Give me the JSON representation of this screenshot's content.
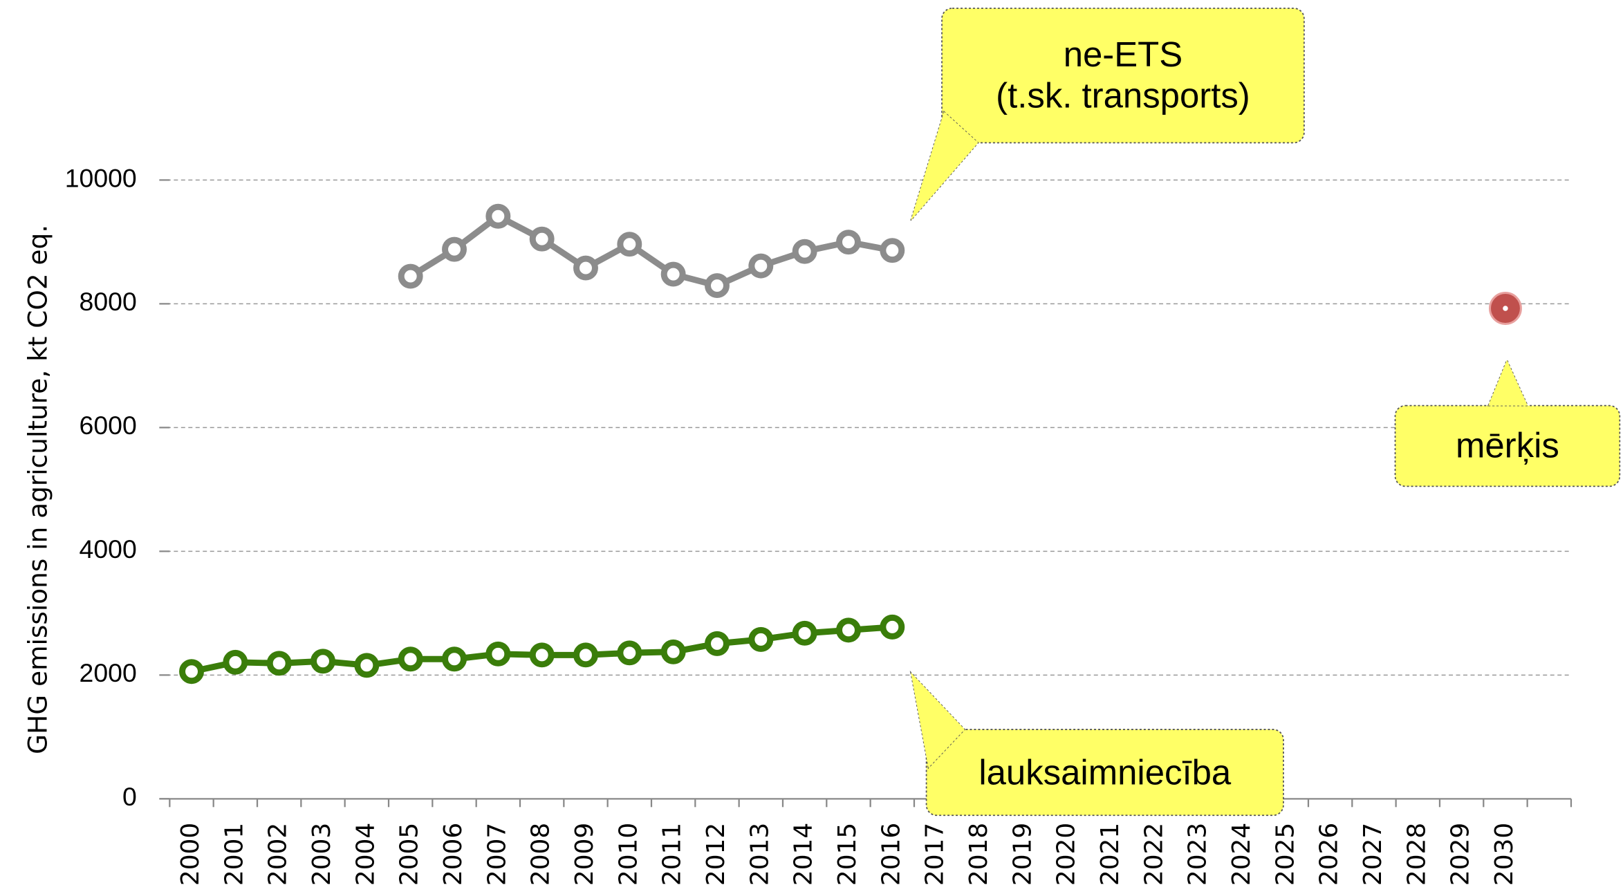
{
  "chart_data": {
    "type": "line",
    "y_label": "GHG emissions in agriculture, kt CO2 eq.",
    "categories": [
      "2000",
      "2001",
      "2002",
      "2003",
      "2004",
      "2005",
      "2006",
      "2007",
      "2008",
      "2009",
      "2010",
      "2011",
      "2012",
      "2013",
      "2014",
      "2015",
      "2016",
      "2017",
      "2018",
      "2019",
      "2020",
      "2021",
      "2022",
      "2023",
      "2024",
      "2025",
      "2026",
      "2027",
      "2028",
      "2029",
      "2030"
    ],
    "series": [
      {
        "name": "ne-ETS\n(t.sk. transports)",
        "color": "#8c8c8c",
        "values": [
          null,
          null,
          null,
          null,
          null,
          8445,
          8880,
          9415,
          9047,
          8579,
          8963,
          8478,
          8294,
          8612,
          8846,
          8997,
          8863,
          null,
          null,
          null,
          null,
          null,
          null,
          null,
          null,
          null,
          null,
          null,
          null,
          null,
          null
        ]
      },
      {
        "name": "lauksaimniecība",
        "color": "#3a7d0a",
        "values": [
          2057,
          2207,
          2190,
          2224,
          2157,
          2258,
          2258,
          2341,
          2324,
          2324,
          2358,
          2375,
          2508,
          2575,
          2676,
          2726,
          2776,
          null,
          null,
          null,
          null,
          null,
          null,
          null,
          null,
          null,
          null,
          null,
          null,
          null,
          null
        ]
      },
      {
        "name": "mērķis",
        "color": "#c0504d",
        "values": [
          null,
          null,
          null,
          null,
          null,
          null,
          null,
          null,
          null,
          null,
          null,
          null,
          null,
          null,
          null,
          null,
          null,
          null,
          null,
          null,
          null,
          null,
          null,
          null,
          null,
          null,
          null,
          null,
          null,
          null,
          7926
        ]
      }
    ],
    "ylim": [
      0,
      10000
    ],
    "yticks": [
      0,
      2000,
      4000,
      6000,
      8000,
      10000
    ],
    "grid": true
  }
}
